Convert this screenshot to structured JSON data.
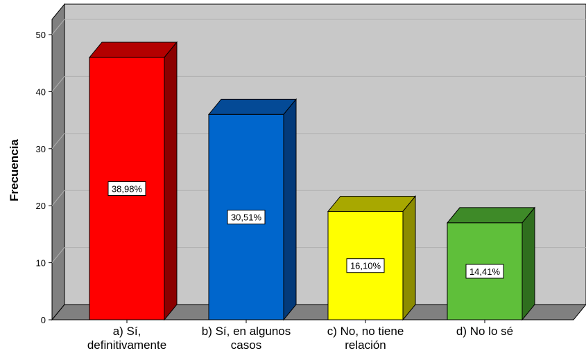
{
  "chart_data": {
    "type": "bar",
    "ylabel": "Frecuencia",
    "ylim": [
      0,
      50
    ],
    "yticks": [
      "0",
      "10",
      "20",
      "30",
      "40",
      "50"
    ],
    "grid": true,
    "categories": [
      [
        "a) Sí,",
        "definitivamente"
      ],
      [
        "b) Sí, en algunos",
        "casos"
      ],
      [
        "c) No, no tiene",
        "relación"
      ],
      [
        "d) No lo sé"
      ]
    ],
    "values": [
      46,
      36,
      19,
      17
    ],
    "data_labels": [
      "38,98%",
      "30,51%",
      "16,10%",
      "14,41%"
    ],
    "colors": [
      {
        "front": "#ff0000",
        "top": "#b30000",
        "side": "#8b0000"
      },
      {
        "front": "#0066cc",
        "top": "#044a96",
        "side": "#033a7a"
      },
      {
        "front": "#ffff00",
        "top": "#a8a800",
        "side": "#8c8c00"
      },
      {
        "front": "#5fbf3a",
        "top": "#3e8a28",
        "side": "#2f6e1e"
      }
    ]
  }
}
